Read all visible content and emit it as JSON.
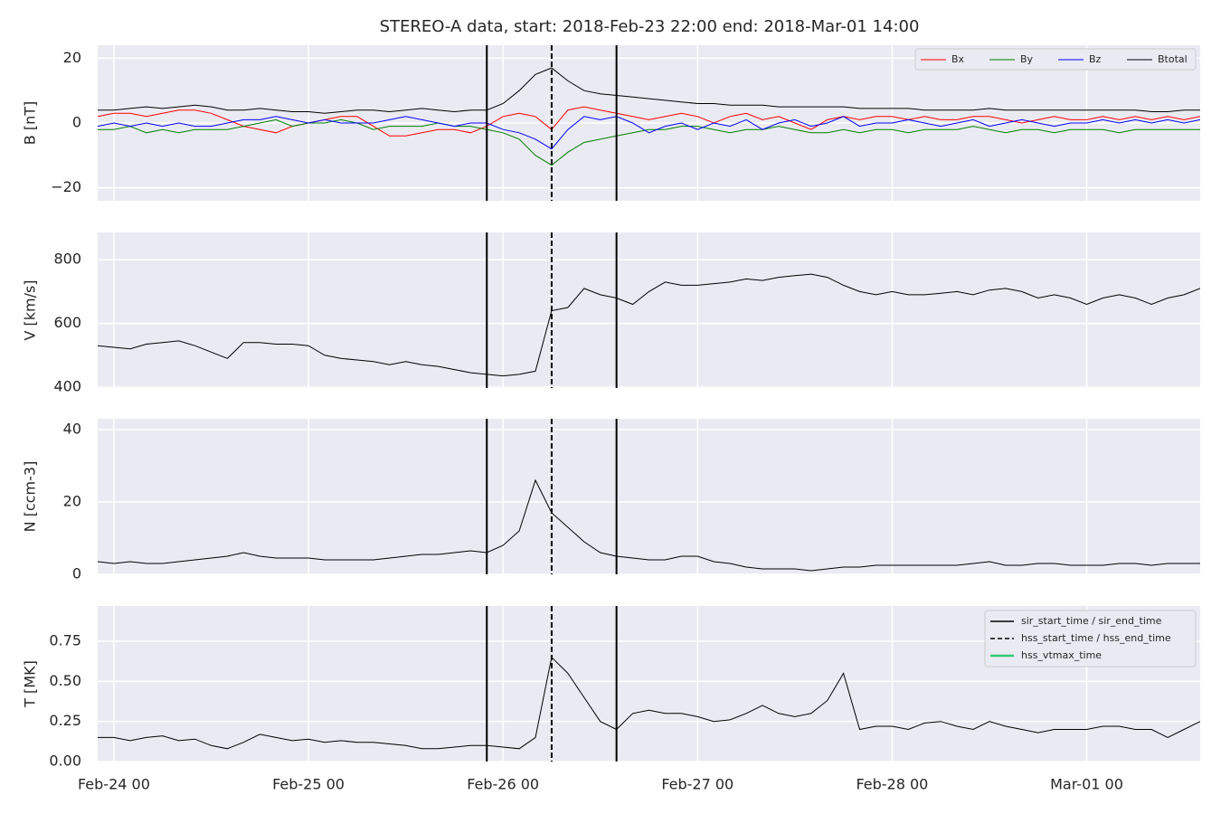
{
  "chart_data": [
    {
      "type": "line",
      "title": "STEREO-A data, start: 2018-Feb-23 22:00  end: 2018-Mar-01 14:00",
      "ylabel": "B [nT]",
      "x": [
        "Feb-23 22",
        "Feb-24 00",
        "Feb-24 02",
        "Feb-24 04",
        "Feb-24 06",
        "Feb-24 08",
        "Feb-24 10",
        "Feb-24 12",
        "Feb-24 14",
        "Feb-24 16",
        "Feb-24 18",
        "Feb-24 20",
        "Feb-24 22",
        "Feb-25 00",
        "Feb-25 02",
        "Feb-25 04",
        "Feb-25 06",
        "Feb-25 08",
        "Feb-25 10",
        "Feb-25 12",
        "Feb-25 14",
        "Feb-25 16",
        "Feb-25 18",
        "Feb-25 20",
        "Feb-25 22",
        "Feb-26 00",
        "Feb-26 02",
        "Feb-26 04",
        "Feb-26 06",
        "Feb-26 08",
        "Feb-26 10",
        "Feb-26 12",
        "Feb-26 14",
        "Feb-26 16",
        "Feb-26 18",
        "Feb-26 20",
        "Feb-26 22",
        "Feb-27 00",
        "Feb-27 02",
        "Feb-27 04",
        "Feb-27 06",
        "Feb-27 08",
        "Feb-27 10",
        "Feb-27 12",
        "Feb-27 14",
        "Feb-27 16",
        "Feb-27 18",
        "Feb-27 20",
        "Feb-27 22",
        "Feb-28 00",
        "Feb-28 02",
        "Feb-28 04",
        "Feb-28 06",
        "Feb-28 08",
        "Feb-28 10",
        "Feb-28 12",
        "Feb-28 14",
        "Feb-28 16",
        "Feb-28 18",
        "Feb-28 20",
        "Feb-28 22",
        "Mar-01 00",
        "Mar-01 02",
        "Mar-01 04",
        "Mar-01 06",
        "Mar-01 08",
        "Mar-01 10",
        "Mar-01 12",
        "Mar-01 14"
      ],
      "series": [
        {
          "name": "Bx",
          "color": "#ff0000",
          "values": [
            2,
            3,
            3,
            2,
            3,
            4,
            4,
            3,
            1,
            -1,
            -2,
            -3,
            -1,
            0,
            1,
            2,
            2,
            -1,
            -4,
            -4,
            -3,
            -2,
            -2,
            -3,
            -1,
            2,
            3,
            2,
            -2,
            4,
            5,
            4,
            3,
            2,
            1,
            2,
            3,
            2,
            0,
            2,
            3,
            1,
            2,
            0,
            -2,
            1,
            2,
            1,
            2,
            2,
            1,
            2,
            1,
            1,
            2,
            2,
            1,
            0,
            1,
            2,
            1,
            1,
            2,
            1,
            2,
            1,
            2,
            1,
            2
          ]
        },
        {
          "name": "By",
          "color": "#008000",
          "values": [
            -2,
            -2,
            -1,
            -3,
            -2,
            -3,
            -2,
            -2,
            -2,
            -1,
            0,
            1,
            -1,
            0,
            0,
            1,
            0,
            -2,
            -1,
            -1,
            -1,
            0,
            -1,
            -1,
            -2,
            -3,
            -5,
            -10,
            -13,
            -9,
            -6,
            -5,
            -4,
            -3,
            -2,
            -2,
            -1,
            -1,
            -2,
            -3,
            -2,
            -2,
            -1,
            -2,
            -3,
            -3,
            -2,
            -3,
            -2,
            -2,
            -3,
            -2,
            -2,
            -2,
            -1,
            -2,
            -3,
            -2,
            -2,
            -3,
            -2,
            -2,
            -2,
            -3,
            -2,
            -2,
            -2,
            -2,
            -2
          ]
        },
        {
          "name": "Bz",
          "color": "#0000ff",
          "values": [
            -1,
            0,
            -1,
            0,
            -1,
            0,
            -1,
            -1,
            0,
            1,
            1,
            2,
            1,
            0,
            1,
            0,
            0,
            0,
            1,
            2,
            1,
            0,
            -1,
            0,
            0,
            -2,
            -3,
            -5,
            -8,
            -2,
            2,
            1,
            2,
            0,
            -3,
            -1,
            0,
            -2,
            0,
            -1,
            1,
            -2,
            0,
            1,
            -1,
            0,
            2,
            -1,
            0,
            0,
            1,
            0,
            -1,
            0,
            1,
            -1,
            0,
            1,
            0,
            -1,
            0,
            0,
            1,
            0,
            1,
            0,
            1,
            0,
            1
          ]
        },
        {
          "name": "Btotal",
          "color": "#000000",
          "values": [
            4,
            4,
            4.5,
            5,
            4.5,
            5,
            5.5,
            5,
            4,
            4,
            4.5,
            4,
            3.5,
            3.5,
            3,
            3.5,
            4,
            4,
            3.5,
            4,
            4.5,
            4,
            3.5,
            4,
            4,
            6,
            10,
            15,
            17,
            13,
            10,
            9,
            8.5,
            8,
            7.5,
            7,
            6.5,
            6,
            6,
            5.5,
            5.5,
            5.5,
            5,
            5,
            5,
            5,
            5,
            4.5,
            4.5,
            4.5,
            4.5,
            4,
            4,
            4,
            4,
            4.5,
            4,
            4,
            4,
            4,
            4,
            4,
            4,
            4,
            4,
            3.5,
            3.5,
            4,
            4
          ]
        }
      ],
      "xlim": [
        "Feb-23 22",
        "Mar-01 14"
      ],
      "ylim": [
        -24,
        24
      ],
      "yticks": [
        {
          "value": -20,
          "label": "−20"
        },
        0,
        20
      ],
      "grid": true,
      "legend": "upper right"
    },
    {
      "type": "line",
      "ylabel": "V [km/s]",
      "color": "#000000",
      "x": [
        "Feb-23 22",
        "Feb-24 00",
        "Feb-24 02",
        "Feb-24 04",
        "Feb-24 06",
        "Feb-24 08",
        "Feb-24 10",
        "Feb-24 12",
        "Feb-24 14",
        "Feb-24 16",
        "Feb-24 18",
        "Feb-24 20",
        "Feb-24 22",
        "Feb-25 00",
        "Feb-25 02",
        "Feb-25 04",
        "Feb-25 06",
        "Feb-25 08",
        "Feb-25 10",
        "Feb-25 12",
        "Feb-25 14",
        "Feb-25 16",
        "Feb-25 18",
        "Feb-25 20",
        "Feb-25 22",
        "Feb-26 00",
        "Feb-26 02",
        "Feb-26 04",
        "Feb-26 06",
        "Feb-26 08",
        "Feb-26 10",
        "Feb-26 12",
        "Feb-26 14",
        "Feb-26 16",
        "Feb-26 18",
        "Feb-26 20",
        "Feb-26 22",
        "Feb-27 00",
        "Feb-27 02",
        "Feb-27 04",
        "Feb-27 06",
        "Feb-27 08",
        "Feb-27 10",
        "Feb-27 12",
        "Feb-27 14",
        "Feb-27 16",
        "Feb-27 18",
        "Feb-27 20",
        "Feb-27 22",
        "Feb-28 00",
        "Feb-28 02",
        "Feb-28 04",
        "Feb-28 06",
        "Feb-28 08",
        "Feb-28 10",
        "Feb-28 12",
        "Feb-28 14",
        "Feb-28 16",
        "Feb-28 18",
        "Feb-28 20",
        "Feb-28 22",
        "Mar-01 00",
        "Mar-01 02",
        "Mar-01 04",
        "Mar-01 06",
        "Mar-01 08",
        "Mar-01 10",
        "Mar-01 12",
        "Mar-01 14"
      ],
      "values": [
        530,
        525,
        520,
        535,
        540,
        545,
        530,
        510,
        490,
        540,
        540,
        535,
        535,
        530,
        500,
        490,
        485,
        480,
        470,
        480,
        470,
        465,
        455,
        445,
        440,
        435,
        440,
        450,
        640,
        650,
        710,
        690,
        680,
        660,
        700,
        730,
        720,
        720,
        725,
        730,
        740,
        735,
        745,
        750,
        755,
        745,
        720,
        700,
        690,
        700,
        690,
        690,
        695,
        700,
        690,
        705,
        710,
        700,
        680,
        690,
        680,
        660,
        680,
        690,
        680,
        660,
        680,
        690,
        710
      ],
      "xlim": [
        "Feb-23 22",
        "Mar-01 14"
      ],
      "ylim": [
        397,
        886
      ],
      "yticks": [
        400,
        600,
        800
      ],
      "grid": true
    },
    {
      "type": "line",
      "ylabel": "N [ccm-3]",
      "color": "#000000",
      "x": [
        "Feb-23 22",
        "Feb-24 00",
        "Feb-24 02",
        "Feb-24 04",
        "Feb-24 06",
        "Feb-24 08",
        "Feb-24 10",
        "Feb-24 12",
        "Feb-24 14",
        "Feb-24 16",
        "Feb-24 18",
        "Feb-24 20",
        "Feb-24 22",
        "Feb-25 00",
        "Feb-25 02",
        "Feb-25 04",
        "Feb-25 06",
        "Feb-25 08",
        "Feb-25 10",
        "Feb-25 12",
        "Feb-25 14",
        "Feb-25 16",
        "Feb-25 18",
        "Feb-25 20",
        "Feb-25 22",
        "Feb-26 00",
        "Feb-26 02",
        "Feb-26 04",
        "Feb-26 06",
        "Feb-26 08",
        "Feb-26 10",
        "Feb-26 12",
        "Feb-26 14",
        "Feb-26 16",
        "Feb-26 18",
        "Feb-26 20",
        "Feb-26 22",
        "Feb-27 00",
        "Feb-27 02",
        "Feb-27 04",
        "Feb-27 06",
        "Feb-27 08",
        "Feb-27 10",
        "Feb-27 12",
        "Feb-27 14",
        "Feb-27 16",
        "Feb-27 18",
        "Feb-27 20",
        "Feb-27 22",
        "Feb-28 00",
        "Feb-28 02",
        "Feb-28 04",
        "Feb-28 06",
        "Feb-28 08",
        "Feb-28 10",
        "Feb-28 12",
        "Feb-28 14",
        "Feb-28 16",
        "Feb-28 18",
        "Feb-28 20",
        "Feb-28 22",
        "Mar-01 00",
        "Mar-01 02",
        "Mar-01 04",
        "Mar-01 06",
        "Mar-01 08",
        "Mar-01 10",
        "Mar-01 12",
        "Mar-01 14"
      ],
      "values": [
        3.5,
        3,
        3.5,
        3,
        3,
        3.5,
        4,
        4.5,
        5,
        6,
        5,
        4.5,
        4.5,
        4.5,
        4,
        4,
        4,
        4,
        4.5,
        5,
        5.5,
        5.5,
        6,
        6.5,
        6,
        8,
        12,
        26,
        17,
        13,
        9,
        6,
        5,
        4.5,
        4,
        4,
        5,
        5,
        3.5,
        3,
        2,
        1.5,
        1.5,
        1.5,
        1,
        1.5,
        2,
        2,
        2.5,
        2.5,
        2.5,
        2.5,
        2.5,
        2.5,
        3,
        3.5,
        2.5,
        2.5,
        3,
        3,
        2.5,
        2.5,
        2.5,
        3,
        3,
        2.5,
        3,
        3,
        3
      ],
      "xlim": [
        "Feb-23 22",
        "Mar-01 14"
      ],
      "ylim": [
        0,
        43
      ],
      "yticks": [
        0,
        20,
        40
      ],
      "grid": true
    },
    {
      "type": "line",
      "ylabel": "T [MK]",
      "color": "#000000",
      "x": [
        "Feb-23 22",
        "Feb-24 00",
        "Feb-24 02",
        "Feb-24 04",
        "Feb-24 06",
        "Feb-24 08",
        "Feb-24 10",
        "Feb-24 12",
        "Feb-24 14",
        "Feb-24 16",
        "Feb-24 18",
        "Feb-24 20",
        "Feb-24 22",
        "Feb-25 00",
        "Feb-25 02",
        "Feb-25 04",
        "Feb-25 06",
        "Feb-25 08",
        "Feb-25 10",
        "Feb-25 12",
        "Feb-25 14",
        "Feb-25 16",
        "Feb-25 18",
        "Feb-25 20",
        "Feb-25 22",
        "Feb-26 00",
        "Feb-26 02",
        "Feb-26 04",
        "Feb-26 06",
        "Feb-26 08",
        "Feb-26 10",
        "Feb-26 12",
        "Feb-26 14",
        "Feb-26 16",
        "Feb-26 18",
        "Feb-26 20",
        "Feb-26 22",
        "Feb-27 00",
        "Feb-27 02",
        "Feb-27 04",
        "Feb-27 06",
        "Feb-27 08",
        "Feb-27 10",
        "Feb-27 12",
        "Feb-27 14",
        "Feb-27 16",
        "Feb-27 18",
        "Feb-27 20",
        "Feb-27 22",
        "Feb-28 00",
        "Feb-28 02",
        "Feb-28 04",
        "Feb-28 06",
        "Feb-28 08",
        "Feb-28 10",
        "Feb-28 12",
        "Feb-28 14",
        "Feb-28 16",
        "Feb-28 18",
        "Feb-28 20",
        "Feb-28 22",
        "Mar-01 00",
        "Mar-01 02",
        "Mar-01 04",
        "Mar-01 06",
        "Mar-01 08",
        "Mar-01 10",
        "Mar-01 12",
        "Mar-01 14"
      ],
      "values": [
        0.15,
        0.15,
        0.13,
        0.15,
        0.16,
        0.13,
        0.14,
        0.1,
        0.08,
        0.12,
        0.17,
        0.15,
        0.13,
        0.14,
        0.12,
        0.13,
        0.12,
        0.12,
        0.11,
        0.1,
        0.08,
        0.08,
        0.09,
        0.1,
        0.1,
        0.09,
        0.08,
        0.15,
        0.65,
        0.55,
        0.4,
        0.25,
        0.2,
        0.3,
        0.32,
        0.3,
        0.3,
        0.28,
        0.25,
        0.26,
        0.3,
        0.35,
        0.3,
        0.28,
        0.3,
        0.38,
        0.55,
        0.2,
        0.22,
        0.22,
        0.2,
        0.24,
        0.25,
        0.22,
        0.2,
        0.25,
        0.22,
        0.2,
        0.18,
        0.2,
        0.2,
        0.2,
        0.22,
        0.22,
        0.2,
        0.2,
        0.15,
        0.2,
        0.25
      ],
      "xlim": [
        "Feb-23 22",
        "Mar-01 14"
      ],
      "ylim": [
        0,
        0.97
      ],
      "yticks": [
        {
          "value": 0,
          "label": "0.00"
        },
        {
          "value": 0.25,
          "label": "0.25"
        },
        {
          "value": 0.5,
          "label": "0.50"
        },
        {
          "value": 0.75,
          "label": "0.75"
        }
      ],
      "xticks": [
        "Feb-24 00",
        "Feb-25 00",
        "Feb-26 00",
        "Feb-27 00",
        "Feb-28 00",
        "Mar-01 00"
      ],
      "grid": true,
      "legend": "upper right",
      "events": [
        {
          "name": "sir_start_time / sir_end_time",
          "color": "#000000",
          "dashed": false,
          "times": [
            "Feb-25 22",
            "Feb-26 14"
          ]
        },
        {
          "name": "hss_start_time / hss_end_time",
          "color": "#000000",
          "dashed": true,
          "times": [
            "Feb-26 06"
          ]
        },
        {
          "name": "hss_vtmax_time",
          "color": "#2ecc71",
          "dashed": false,
          "times": []
        }
      ]
    }
  ]
}
